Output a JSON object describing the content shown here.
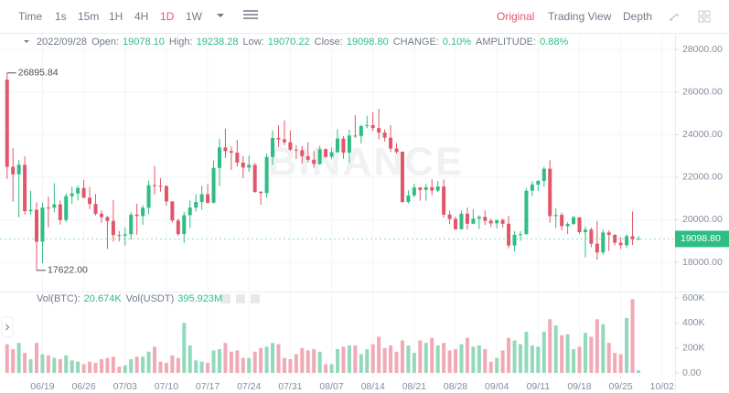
{
  "toolbar": {
    "intervals": [
      "Time",
      "1s",
      "15m",
      "1H",
      "4H",
      "1D",
      "1W"
    ],
    "active_interval": 5,
    "views": [
      "Original",
      "Trading View",
      "Depth"
    ],
    "active_view": 0
  },
  "watermark": "BINANCE",
  "chart_data": [
    {
      "type": "candlestick",
      "header": {
        "date": "2022/09/28",
        "items": [
          {
            "label": "Open:",
            "value": "19078.10"
          },
          {
            "label": "High:",
            "value": "19238.28"
          },
          {
            "label": "Low:",
            "value": "19070.22"
          },
          {
            "label": "Close:",
            "value": "19098.80"
          },
          {
            "label": "CHANGE:",
            "value": "0.10%"
          },
          {
            "label": "AMPLITUDE:",
            "value": "0.88%"
          }
        ]
      },
      "up_color": "#2ebd85",
      "down_color": "#e0566a",
      "xlim": [
        -1.2,
        113.2
      ],
      "ylim": [
        16670,
        28690
      ],
      "yticks": [
        {
          "value": 18000,
          "label": "18000.00"
        },
        {
          "value": 20000,
          "label": "20000.00"
        },
        {
          "value": 22000,
          "label": "22000.00"
        },
        {
          "value": 24000,
          "label": "24000.00"
        },
        {
          "value": 26000,
          "label": "26000.00"
        },
        {
          "value": 28000,
          "label": "28000.00"
        }
      ],
      "grid": true,
      "open": [
        26574.53,
        22485,
        22136,
        22583,
        20401,
        20468,
        18970,
        20574,
        20573,
        20723,
        19987,
        21110,
        21237,
        21491,
        21038,
        20742,
        20281,
        20123,
        19942,
        19279,
        19252,
        19315,
        20236,
        20175,
        20564,
        21624,
        21594,
        21591,
        20862,
        19963,
        19328,
        20212,
        20570,
        20830,
        21195,
        20798,
        22432,
        23396,
        23223,
        23152,
        22684,
        22451,
        22579,
        21310,
        21254,
        22952,
        23842,
        23773,
        23643,
        23293,
        23268,
        22987,
        22818,
        22622,
        23313,
        22954,
        23175,
        23810,
        23149,
        23954,
        23934,
        24403,
        24442,
        24305,
        24094,
        23854,
        23342,
        23191,
        20834,
        21140,
        21516,
        21399,
        21529,
        21368,
        21560,
        20241,
        20037,
        19555,
        20285,
        19812,
        20050,
        20132,
        19951,
        19832,
        19987,
        19812,
        18791,
        19290,
        19319,
        21361,
        21648,
        21826,
        22395,
        20173,
        20226,
        19701,
        19803,
        20113,
        19416,
        19538,
        18875,
        18461,
        19401,
        19288,
        18920,
        18807,
        19227,
        19078.1
      ],
      "high": [
        26895.84,
        23362,
        22800,
        22980,
        21365,
        20815,
        20800,
        21090,
        21723,
        20900,
        21233,
        21558,
        21614,
        21868,
        21539,
        21212,
        20432,
        20179,
        20918,
        19467,
        19647,
        20354,
        20750,
        20675,
        21838,
        22527,
        21951,
        21592,
        20868,
        20059,
        20366,
        20900,
        21200,
        21588,
        21684,
        22780,
        23800,
        24276,
        23442,
        23757,
        22998,
        23014,
        22666,
        21347,
        23112,
        24199,
        24442,
        24668,
        24194,
        23510,
        23467,
        23648,
        23223,
        23475,
        23354,
        23400,
        24245,
        23929,
        24226,
        24918,
        24456,
        24888,
        25047,
        25211,
        24247,
        24446,
        23600,
        23208,
        21382,
        21692,
        21522,
        21684,
        21900,
        21819,
        21886,
        20402,
        20156,
        20433,
        20576,
        20490,
        20210,
        20443,
        20054,
        20000,
        20058,
        20180,
        19464,
        19463,
        21500,
        21810,
        21860,
        22488,
        22799,
        20541,
        20330,
        19890,
        20189,
        20117,
        19689,
        19634,
        19956,
        19550,
        19500,
        19316,
        19180,
        19316,
        20385,
        19238.28
      ],
      "low": [
        21925,
        20846,
        20111,
        20232,
        20246,
        17622,
        17960,
        19637,
        20348,
        19770,
        19890,
        20740,
        20906,
        21000,
        20510,
        20202,
        19854,
        18626,
        18975,
        18977,
        18781,
        19055,
        19304,
        19762,
        20251,
        21189,
        21319,
        20655,
        19875,
        19240,
        18910,
        19616,
        20384,
        20478,
        20750,
        20770,
        21581,
        22906,
        22341,
        22500,
        21950,
        22257,
        21250,
        20706,
        21042,
        22582,
        23414,
        23502,
        23227,
        22850,
        22654,
        22681,
        22435,
        22586,
        22909,
        22841,
        23155,
        22865,
        22664,
        23852,
        23583,
        24296,
        24168,
        23773,
        23671,
        23180,
        23111,
        20783,
        20761,
        21060,
        20890,
        20890,
        21145,
        21310,
        20107,
        19800,
        19520,
        19550,
        19540,
        19797,
        19565,
        19755,
        19655,
        19600,
        19633,
        18650,
        18510,
        19012,
        19297,
        21111,
        21350,
        21538,
        19860,
        19617,
        19497,
        19320,
        19748,
        19335,
        18232,
        18711,
        18125,
        18356,
        18531,
        18805,
        18629,
        18680,
        18816,
        19070.22
      ],
      "close": [
        22485,
        22136,
        22583,
        20401,
        20468,
        18970,
        20574,
        20573,
        20723,
        19987,
        21110,
        21237,
        21491,
        21038,
        20742,
        20281,
        20123,
        19942,
        19279,
        19252,
        19315,
        20236,
        20175,
        20564,
        21624,
        21594,
        21591,
        20862,
        19963,
        19328,
        20212,
        20570,
        20830,
        21195,
        20798,
        22432,
        23396,
        23223,
        23152,
        22684,
        22451,
        22579,
        21310,
        21254,
        22952,
        23842,
        23773,
        23643,
        23293,
        23268,
        22987,
        22818,
        22622,
        23313,
        22954,
        23175,
        23810,
        23149,
        23954,
        23934,
        24403,
        24442,
        24305,
        24094,
        23854,
        23342,
        23191,
        20834,
        21140,
        21516,
        21399,
        21529,
        21368,
        21560,
        20241,
        20037,
        19555,
        20285,
        19812,
        20050,
        20132,
        19951,
        19832,
        19987,
        19812,
        18791,
        19290,
        19319,
        21361,
        21648,
        21826,
        22395,
        20173,
        20226,
        19701,
        19803,
        20113,
        19416,
        19538,
        18875,
        18461,
        19401,
        19288,
        18920,
        18807,
        19227,
        19078.1,
        19098.8
      ],
      "annotations": [
        {
          "value": 26895.84,
          "label": "26895.84"
        },
        {
          "value": 17622,
          "label": "17622.00"
        }
      ],
      "last_price": {
        "value": 19098.8,
        "label": "19098.80"
      }
    },
    {
      "type": "bar",
      "header": {
        "items": [
          {
            "label": "Vol(BTC):",
            "value": "20.674K"
          },
          {
            "label": "Vol(USDT)",
            "value": "395.923M"
          }
        ]
      },
      "up_color": "#92d9bb",
      "down_color": "#f2a9b6",
      "xlim": [
        -1.2,
        113.2
      ],
      "ylim": [
        -51000,
        644000
      ],
      "yticks": [
        {
          "value": 0,
          "label": "0.00"
        },
        {
          "value": 200000,
          "label": "200K"
        },
        {
          "value": 400000,
          "label": "400K"
        },
        {
          "value": 600000,
          "label": "600K"
        }
      ],
      "xticks": [
        {
          "value": 6,
          "label": "06/19"
        },
        {
          "value": 13,
          "label": "06/26"
        },
        {
          "value": 20,
          "label": "07/03"
        },
        {
          "value": 27,
          "label": "07/10"
        },
        {
          "value": 34,
          "label": "07/17"
        },
        {
          "value": 41,
          "label": "07/24"
        },
        {
          "value": 48,
          "label": "07/31"
        },
        {
          "value": 55,
          "label": "08/07"
        },
        {
          "value": 62,
          "label": "08/14"
        },
        {
          "value": 69,
          "label": "08/21"
        },
        {
          "value": 76,
          "label": "08/28"
        },
        {
          "value": 83,
          "label": "09/04"
        },
        {
          "value": 90,
          "label": "09/11"
        },
        {
          "value": 97,
          "label": "09/18"
        },
        {
          "value": 104,
          "label": "09/25"
        },
        {
          "value": 111,
          "label": "10/02"
        }
      ],
      "values": [
        230000,
        190000,
        240000,
        160000,
        110000,
        240000,
        150000,
        140000,
        120000,
        110000,
        140000,
        100000,
        90000,
        70000,
        90000,
        80000,
        110000,
        120000,
        130000,
        50000,
        60000,
        110000,
        130000,
        130000,
        170000,
        210000,
        90000,
        80000,
        140000,
        120000,
        400000,
        220000,
        100000,
        90000,
        80000,
        180000,
        190000,
        240000,
        170000,
        180000,
        120000,
        120000,
        170000,
        200000,
        210000,
        240000,
        230000,
        120000,
        110000,
        150000,
        200000,
        180000,
        190000,
        170000,
        70000,
        70000,
        190000,
        210000,
        220000,
        220000,
        150000,
        190000,
        230000,
        290000,
        200000,
        220000,
        170000,
        260000,
        220000,
        160000,
        260000,
        240000,
        280000,
        220000,
        240000,
        180000,
        190000,
        230000,
        280000,
        210000,
        220000,
        190000,
        90000,
        120000,
        180000,
        280000,
        260000,
        230000,
        330000,
        220000,
        210000,
        330000,
        430000,
        380000,
        300000,
        310000,
        190000,
        210000,
        320000,
        290000,
        430000,
        390000,
        240000,
        160000,
        150000,
        440000,
        590000,
        20674
      ]
    }
  ]
}
